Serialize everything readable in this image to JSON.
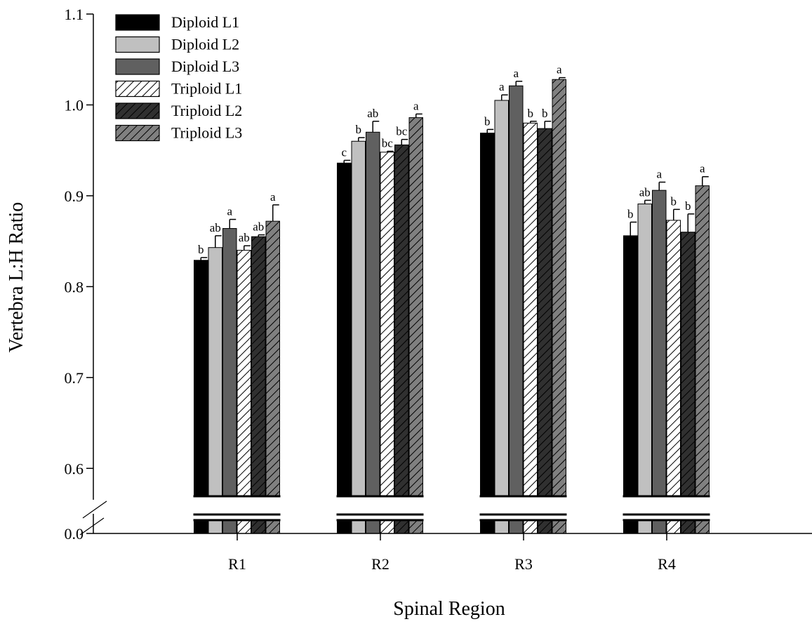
{
  "chart_data": {
    "type": "bar",
    "title": "",
    "xlabel": "Spinal Region",
    "ylabel": "Vertebra L:H Ratio",
    "categories": [
      "R1",
      "R2",
      "R3",
      "R4"
    ],
    "yticks": [
      "0.0",
      "0.6",
      "0.7",
      "0.8",
      "0.9",
      "1.0",
      "1.1"
    ],
    "ylim": [
      0.55,
      1.1
    ],
    "axis_break": true,
    "legend_position": "top-left",
    "series": [
      {
        "name": "Diploid L1",
        "fill": "#000000",
        "pattern": "solid",
        "values": [
          0.829,
          0.936,
          0.969,
          0.856
        ],
        "errors": [
          0.003,
          0.003,
          0.004,
          0.015
        ],
        "labels": [
          "b",
          "c",
          "b",
          "b"
        ]
      },
      {
        "name": "Diploid L2",
        "fill": "#c0c0c0",
        "pattern": "solid",
        "values": [
          0.843,
          0.96,
          1.005,
          0.891
        ],
        "errors": [
          0.013,
          0.004,
          0.006,
          0.004
        ],
        "labels": [
          "ab",
          "b",
          "a",
          "ab"
        ]
      },
      {
        "name": "Diploid L3",
        "fill": "#606060",
        "pattern": "solid",
        "values": [
          0.864,
          0.97,
          1.021,
          0.906
        ],
        "errors": [
          0.01,
          0.012,
          0.005,
          0.009
        ],
        "labels": [
          "a",
          "ab",
          "a",
          "a"
        ]
      },
      {
        "name": "Triploid L1",
        "fill": "#ffffff",
        "pattern": "hatch",
        "hatchColor": "#000000",
        "values": [
          0.84,
          0.948,
          0.98,
          0.873
        ],
        "errors": [
          0.005,
          0.001,
          0.002,
          0.012
        ],
        "labels": [
          "ab",
          "bc",
          "b",
          "b"
        ]
      },
      {
        "name": "Triploid L2",
        "fill": "#303030",
        "pattern": "hatch",
        "hatchColor": "#000000",
        "values": [
          0.855,
          0.956,
          0.974,
          0.86
        ],
        "errors": [
          0.002,
          0.006,
          0.008,
          0.02
        ],
        "labels": [
          "ab",
          "bc",
          "b",
          "b"
        ]
      },
      {
        "name": "Triploid L3",
        "fill": "#808080",
        "pattern": "hatch",
        "hatchColor": "#000000",
        "values": [
          0.872,
          0.986,
          1.028,
          0.911
        ],
        "errors": [
          0.018,
          0.004,
          0.002,
          0.01
        ],
        "labels": [
          "a",
          "a",
          "a",
          "a"
        ]
      }
    ]
  }
}
